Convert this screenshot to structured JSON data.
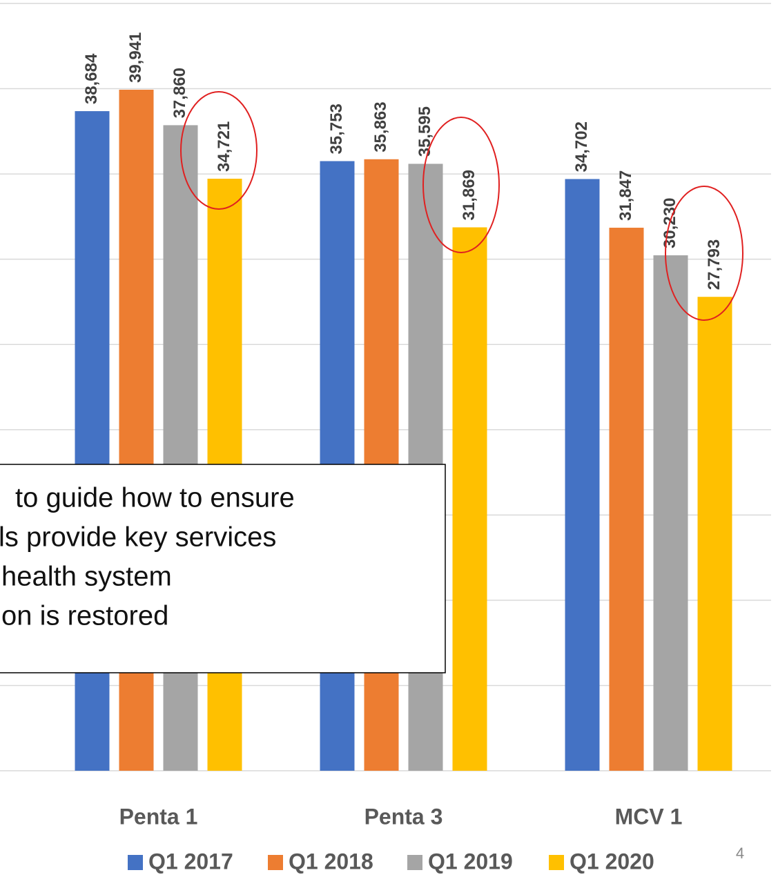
{
  "chart_data": {
    "type": "bar",
    "categories": [
      "Penta 1",
      "Penta 3",
      "MCV 1"
    ],
    "series": [
      {
        "name": "Q1 2017",
        "color": "#4472c4",
        "values": [
          38684,
          35753,
          34702
        ],
        "value_labels": [
          "38,684",
          "35,753",
          "34,702"
        ]
      },
      {
        "name": "Q1 2018",
        "color": "#ed7d31",
        "values": [
          39941,
          35863,
          31847
        ],
        "value_labels": [
          "39,941",
          "35,863",
          "31,847"
        ]
      },
      {
        "name": "Q1 2019",
        "color": "#a5a5a5",
        "values": [
          37860,
          35595,
          30230
        ],
        "value_labels": [
          "37,860",
          "35,595",
          "30,230"
        ]
      },
      {
        "name": "Q1 2020",
        "color": "#ffc000",
        "values": [
          34721,
          31869,
          27793
        ],
        "value_labels": [
          "34,721",
          "31,869",
          "27,793"
        ]
      }
    ],
    "ylim": [
      0,
      45000
    ],
    "yticks": [
      0,
      5000,
      10000,
      15000,
      20000,
      25000,
      30000,
      35000,
      40000,
      45000
    ],
    "grid": true,
    "legend": "bottom",
    "annotation": {
      "lines": [
        "to guide how to ensure",
        "ls provide key services",
        "health system",
        "on is restored"
      ]
    },
    "page_number": "4"
  }
}
